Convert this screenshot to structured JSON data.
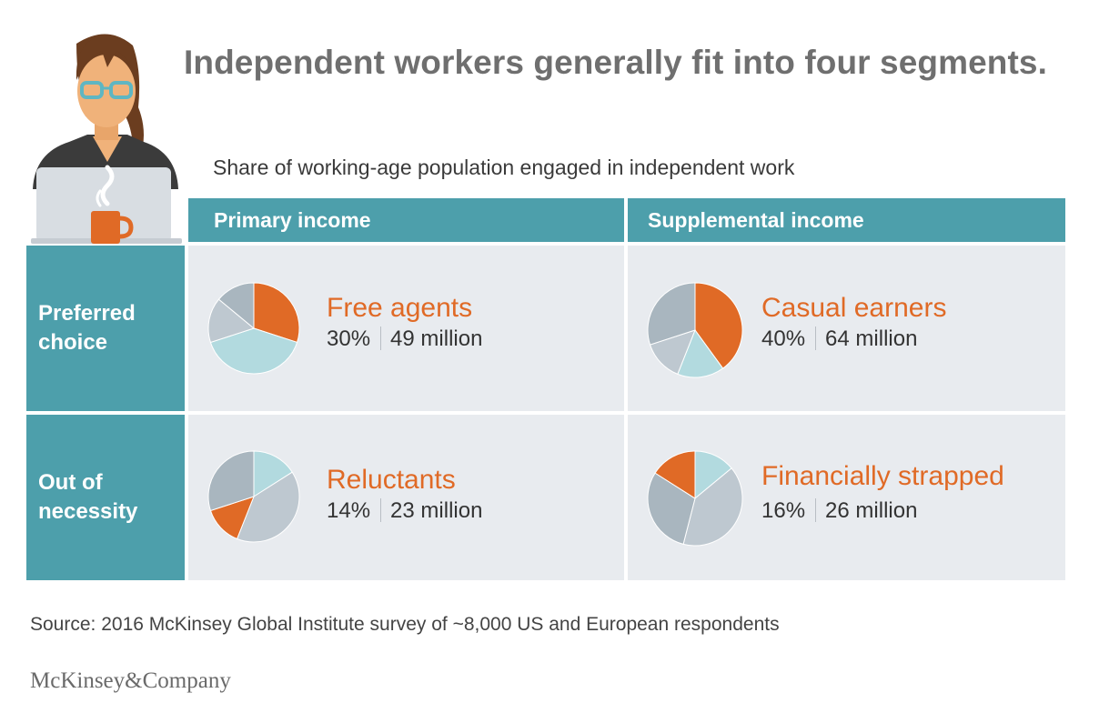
{
  "title": "Independent workers generally fit into four segments.",
  "subtitle": "Share of working-age population engaged in independent work",
  "columns": [
    "Primary income",
    "Supplemental income"
  ],
  "rows": [
    "Preferred choice",
    "Out of necessity"
  ],
  "colors": {
    "header": "#4d9fab",
    "highlight": "#e06a26",
    "cell_bg": "#e8ebef"
  },
  "chart_data": {
    "type": "pie",
    "segments": [
      {
        "name": "Free agents",
        "percent": 30,
        "percent_label": "30%",
        "population_label": "49 million",
        "income": "Primary income",
        "motive": "Preferred choice"
      },
      {
        "name": "Casual earners",
        "percent": 40,
        "percent_label": "40%",
        "population_label": "64 million",
        "income": "Supplemental income",
        "motive": "Preferred choice"
      },
      {
        "name": "Reluctants",
        "percent": 14,
        "percent_label": "14%",
        "population_label": "23 million",
        "income": "Primary income",
        "motive": "Out of necessity"
      },
      {
        "name": "Financially strapped",
        "percent": 16,
        "percent_label": "16%",
        "population_label": "26 million",
        "income": "Supplemental income",
        "motive": "Out of necessity"
      }
    ]
  },
  "source": "Source: 2016 McKinsey Global Institute survey of ~8,000 US and European respondents",
  "brand": "McKinsey&Company",
  "illustration": {
    "icon": "woman-with-laptop-and-coffee-icon"
  }
}
